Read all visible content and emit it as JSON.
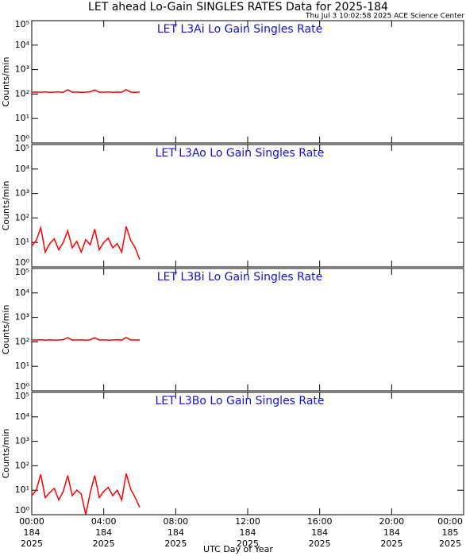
{
  "title": "LET ahead Lo-Gain SINGLES RATES Data for 2025-184",
  "subtitle": "Thu Jul  3 10:02:58 2025 ACE Science Center",
  "xlabel": "UTC Day of Year",
  "chart_data": [
    {
      "type": "line",
      "title": "LET L3Ai Lo Gain Singles Rate",
      "ylabel": "Counts/min",
      "log": true,
      "xlim": [
        0,
        24
      ],
      "ylim": [
        1,
        100000
      ],
      "yticks": [
        {
          "value": 1,
          "label": "10⁰"
        },
        {
          "value": 10,
          "label": "10¹"
        },
        {
          "value": 100,
          "label": "10²"
        },
        {
          "value": 1000,
          "label": "10³"
        },
        {
          "value": 10000,
          "label": "10⁴"
        },
        {
          "value": 100000,
          "label": "10⁵"
        }
      ],
      "x": [
        0,
        0.25,
        0.5,
        0.75,
        1,
        1.25,
        1.5,
        1.75,
        2,
        2.25,
        2.5,
        2.75,
        3,
        3.25,
        3.5,
        3.75,
        4,
        4.25,
        4.5,
        4.75,
        5,
        5.25,
        5.5,
        5.75,
        6
      ],
      "series": [
        {
          "color": "#ff0000",
          "values": [
            118,
            121,
            119,
            123,
            117,
            120,
            122,
            118,
            150,
            119,
            121,
            117,
            120,
            123,
            148,
            118,
            120,
            122,
            117,
            121,
            119,
            152,
            120,
            118,
            121
          ]
        }
      ]
    },
    {
      "type": "line",
      "title": "LET L3Ao Lo Gain Singles Rate",
      "ylabel": "Counts/min",
      "log": true,
      "xlim": [
        0,
        24
      ],
      "ylim": [
        1,
        100000
      ],
      "yticks": [
        {
          "value": 1,
          "label": "10⁰"
        },
        {
          "value": 10,
          "label": "10¹"
        },
        {
          "value": 100,
          "label": "10²"
        },
        {
          "value": 1000,
          "label": "10³"
        },
        {
          "value": 10000,
          "label": "10⁴"
        },
        {
          "value": 100000,
          "label": "10⁵"
        }
      ],
      "x": [
        0,
        0.25,
        0.5,
        0.75,
        1,
        1.25,
        1.5,
        1.75,
        2,
        2.25,
        2.5,
        2.75,
        3,
        3.25,
        3.5,
        3.75,
        4,
        4.25,
        4.5,
        4.75,
        5,
        5.25,
        5.5,
        5.75,
        6
      ],
      "series": [
        {
          "color": "#ff0000",
          "values": [
            7,
            12,
            40,
            4,
            9,
            14,
            5,
            10,
            30,
            6,
            11,
            4,
            13,
            8,
            35,
            5,
            10,
            15,
            6,
            9,
            4,
            45,
            12,
            6,
            2
          ]
        }
      ]
    },
    {
      "type": "line",
      "title": "LET L3Bi Lo Gain Singles Rate",
      "ylabel": "Counts/min",
      "log": true,
      "xlim": [
        0,
        24
      ],
      "ylim": [
        1,
        100000
      ],
      "yticks": [
        {
          "value": 1,
          "label": "10⁰"
        },
        {
          "value": 10,
          "label": "10¹"
        },
        {
          "value": 100,
          "label": "10²"
        },
        {
          "value": 1000,
          "label": "10³"
        },
        {
          "value": 10000,
          "label": "10⁴"
        },
        {
          "value": 100000,
          "label": "10⁵"
        }
      ],
      "x": [
        0,
        0.25,
        0.5,
        0.75,
        1,
        1.25,
        1.5,
        1.75,
        2,
        2.25,
        2.5,
        2.75,
        3,
        3.25,
        3.5,
        3.75,
        4,
        4.25,
        4.5,
        4.75,
        5,
        5.25,
        5.5,
        5.75,
        6
      ],
      "series": [
        {
          "color": "#ff0000",
          "values": [
            119,
            120,
            122,
            118,
            121,
            117,
            120,
            123,
            149,
            118,
            120,
            121,
            117,
            122,
            147,
            119,
            121,
            118,
            120,
            123,
            118,
            151,
            119,
            121,
            120
          ]
        }
      ]
    },
    {
      "type": "line",
      "title": "LET L3Bo Lo Gain Singles Rate",
      "ylabel": "Counts/min",
      "log": true,
      "xlim": [
        0,
        24
      ],
      "ylim": [
        1,
        100000
      ],
      "yticks": [
        {
          "value": 1,
          "label": "10⁰"
        },
        {
          "value": 10,
          "label": "10¹"
        },
        {
          "value": 100,
          "label": "10²"
        },
        {
          "value": 1000,
          "label": "10³"
        },
        {
          "value": 10000,
          "label": "10⁴"
        },
        {
          "value": 100000,
          "label": "10⁵"
        }
      ],
      "xticks": [
        {
          "value": 0,
          "label": [
            "00:00",
            "184",
            "2025"
          ]
        },
        {
          "value": 4,
          "label": [
            "04:00",
            "184",
            "2025"
          ]
        },
        {
          "value": 8,
          "label": [
            "08:00",
            "184",
            "2025"
          ]
        },
        {
          "value": 12,
          "label": [
            "12:00",
            "184",
            "2025"
          ]
        },
        {
          "value": 16,
          "label": [
            "16:00",
            "184",
            "2025"
          ]
        },
        {
          "value": 20,
          "label": [
            "20:00",
            "184",
            "2025"
          ]
        },
        {
          "value": 24,
          "label": [
            "00:00",
            "185",
            "2025"
          ]
        }
      ],
      "x": [
        0,
        0.25,
        0.5,
        0.75,
        1,
        1.25,
        1.5,
        1.75,
        2,
        2.25,
        2.5,
        2.75,
        3,
        3.25,
        3.5,
        3.75,
        4,
        4.25,
        4.5,
        4.75,
        5,
        5.25,
        5.5,
        5.75,
        6
      ],
      "series": [
        {
          "color": "#ff0000",
          "values": [
            6,
            10,
            45,
            5,
            8,
            12,
            4,
            9,
            40,
            6,
            10,
            7,
            1,
            8,
            40,
            5,
            9,
            13,
            6,
            10,
            4,
            48,
            11,
            5,
            2
          ]
        }
      ]
    }
  ]
}
